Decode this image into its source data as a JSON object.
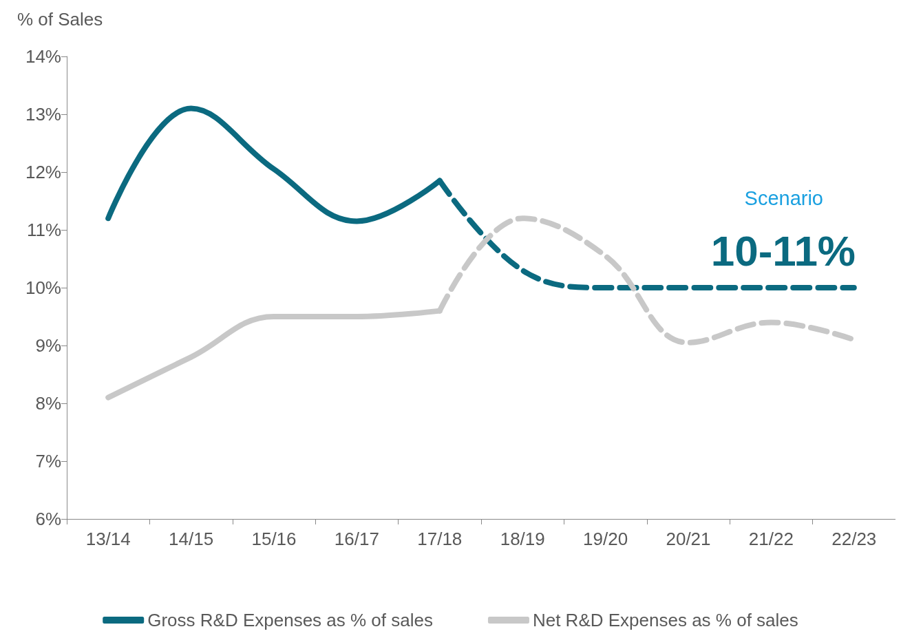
{
  "chart_data": {
    "type": "line",
    "ylabel": "% of Sales",
    "categories": [
      "13/14",
      "14/15",
      "15/16",
      "16/17",
      "17/18",
      "18/19",
      "19/20",
      "20/21",
      "21/22",
      "22/23"
    ],
    "ylim": [
      6,
      14
    ],
    "yticks": [
      {
        "value": 6,
        "label": "6%"
      },
      {
        "value": 7,
        "label": "7%"
      },
      {
        "value": 8,
        "label": "8%"
      },
      {
        "value": 9,
        "label": "9%"
      },
      {
        "value": 10,
        "label": "10%"
      },
      {
        "value": 11,
        "label": "11%"
      },
      {
        "value": 12,
        "label": "12%"
      },
      {
        "value": 13,
        "label": "13%"
      },
      {
        "value": 14,
        "label": "14%"
      }
    ],
    "series": [
      {
        "name": "Gross R&D Expenses as % of sales",
        "color": "#0b6a80",
        "line_style": "solid",
        "values": [
          11.2,
          13.1,
          12.05,
          11.15,
          11.85,
          null,
          null,
          null,
          null,
          null
        ]
      },
      {
        "color": "#0b6a80",
        "line_style": "dashed",
        "values": [
          null,
          null,
          null,
          null,
          11.85,
          10.3,
          10.0,
          10.0,
          10.0,
          10.0
        ]
      },
      {
        "name": "Net R&D Expenses as % of sales",
        "color": "#c8c8c8",
        "line_style": "solid",
        "values": [
          8.1,
          8.8,
          9.5,
          9.5,
          9.6,
          null,
          null,
          null,
          null,
          null
        ]
      },
      {
        "color": "#c8c8c8",
        "line_style": "dashed",
        "values": [
          null,
          null,
          null,
          null,
          9.6,
          11.2,
          10.55,
          9.05,
          9.4,
          9.1
        ]
      }
    ],
    "annotations": [
      "Scenario",
      "10-11%"
    ],
    "grid": false,
    "legend": "bottom",
    "marker": "none"
  }
}
